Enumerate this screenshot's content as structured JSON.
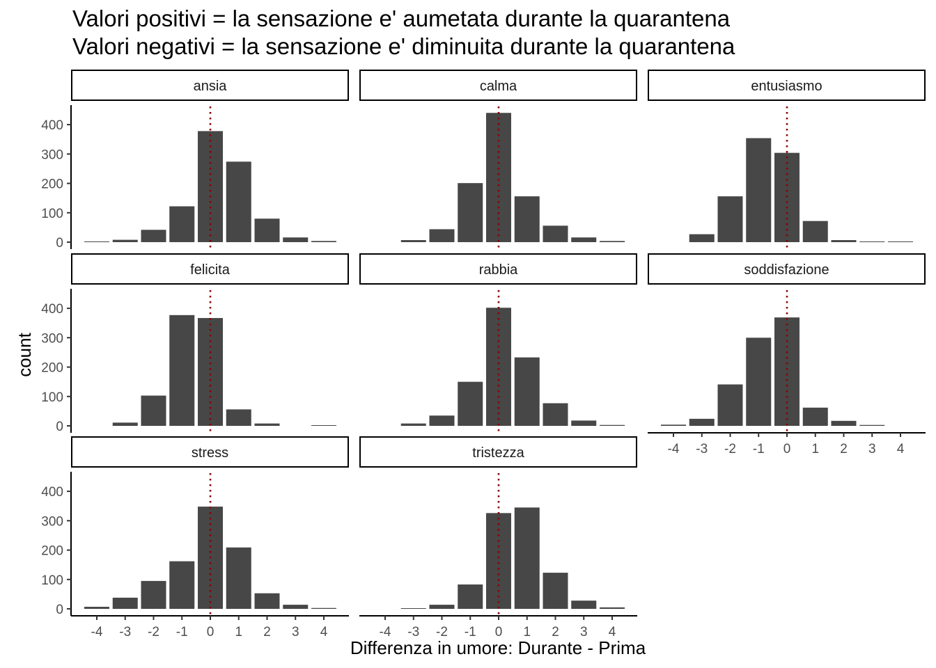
{
  "chart_data": {
    "type": "bar",
    "title_lines": [
      "Valori positivi = la sensazione e' aumetata durante la quarantena",
      "Valori negativi = la sensazione e' diminuita durante la quarantena"
    ],
    "xlabel": "Differenza in umore: Durante - Prima",
    "ylabel": "count",
    "x": [
      -4,
      -3,
      -2,
      -1,
      0,
      1,
      2,
      3,
      4
    ],
    "x_tick_labels": [
      "-4",
      "-3",
      "-2",
      "-1",
      "0",
      "1",
      "2",
      "3",
      "4"
    ],
    "ylim": [
      0,
      450
    ],
    "y_ticks": [
      0,
      100,
      200,
      300,
      400
    ],
    "reference_line": {
      "x": 0,
      "style": "dotted",
      "color": "#8b0000"
    },
    "bar_color": "#474747",
    "grid": false,
    "layout": "facet_wrap 3 columns, free x per facet, fixed y",
    "panels": [
      {
        "name": "ansia",
        "values": [
          2,
          8,
          42,
          122,
          378,
          274,
          80,
          16,
          4
        ]
      },
      {
        "name": "calma",
        "values": [
          0,
          7,
          44,
          201,
          440,
          156,
          56,
          16,
          4
        ]
      },
      {
        "name": "entusiasmo",
        "values": [
          0,
          27,
          156,
          354,
          304,
          72,
          7,
          2,
          2
        ]
      },
      {
        "name": "felicita",
        "values": [
          0,
          11,
          103,
          377,
          367,
          56,
          8,
          0,
          2
        ]
      },
      {
        "name": "rabbia",
        "values": [
          0,
          8,
          35,
          150,
          402,
          233,
          77,
          18,
          3
        ]
      },
      {
        "name": "soddisfazione",
        "values": [
          4,
          24,
          141,
          300,
          369,
          62,
          17,
          3,
          0
        ]
      },
      {
        "name": "stress",
        "values": [
          7,
          38,
          95,
          162,
          348,
          209,
          53,
          14,
          3
        ]
      },
      {
        "name": "tristezza",
        "values": [
          0,
          2,
          14,
          83,
          326,
          345,
          123,
          28,
          5
        ]
      }
    ]
  }
}
